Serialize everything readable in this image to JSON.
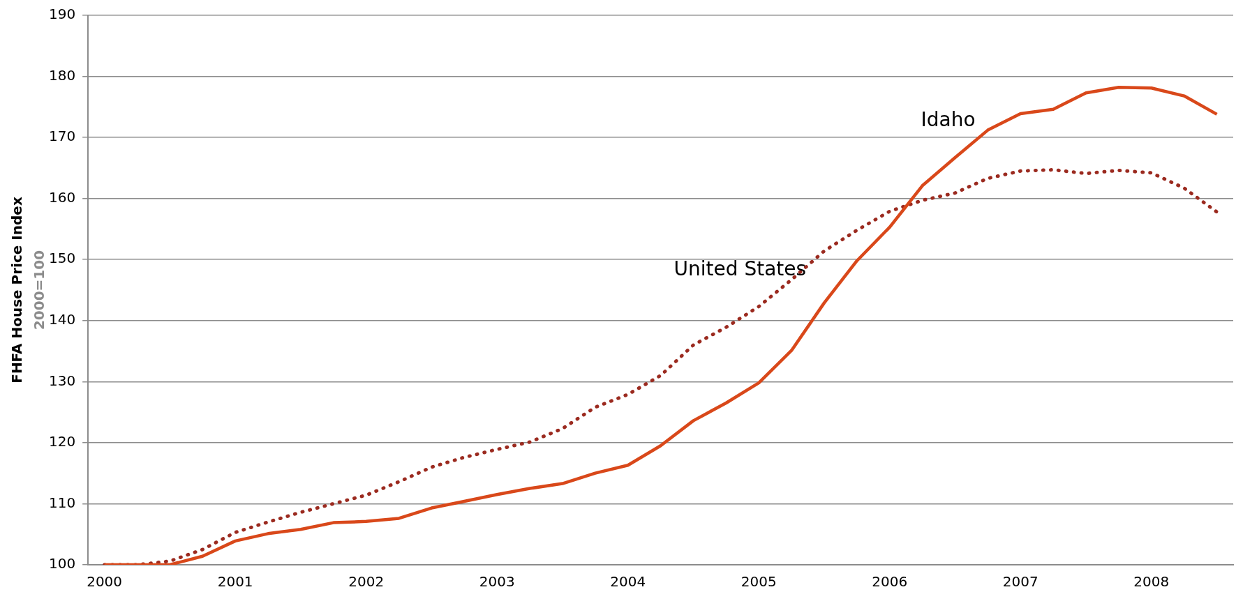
{
  "chart_data": {
    "type": "line",
    "ylabel": "FHFA House Price Index\n2000=100",
    "categories": [
      "2000",
      null,
      null,
      null,
      "2001",
      null,
      null,
      null,
      "2002",
      null,
      null,
      null,
      "2003",
      null,
      null,
      null,
      "2004",
      null,
      null,
      null,
      "2005",
      null,
      null,
      null,
      "2006",
      null,
      null,
      null,
      "2007",
      null,
      null,
      null,
      "2008",
      null,
      null
    ],
    "series": [
      {
        "name": "Idaho",
        "color": "#d9481a",
        "line_style": "solid",
        "values": [
          100,
          100,
          100,
          101.4,
          103.9,
          105.1,
          105.8,
          106.9,
          107.1,
          107.6,
          109.3,
          110.4,
          111.5,
          112.5,
          113.3,
          115,
          116.3,
          119.5,
          123.6,
          126.5,
          129.8,
          135.1,
          142.9,
          149.8,
          155.3,
          162.1,
          166.7,
          171.2,
          173.9,
          174.6,
          177.3,
          178.2,
          178.1,
          176.8,
          173.8
        ]
      },
      {
        "name": "United States",
        "color": "#9b2a1f",
        "line_style": "dotted",
        "values": [
          100,
          100,
          100.6,
          102.5,
          105.3,
          107,
          108.6,
          110,
          111.4,
          113.6,
          116,
          117.6,
          118.9,
          120.1,
          122.3,
          125.8,
          127.9,
          131,
          136,
          138.9,
          142.3,
          146.7,
          151.4,
          154.8,
          157.9,
          159.7,
          160.9,
          163.3,
          164.5,
          164.7,
          164.1,
          164.6,
          164.2,
          161.7,
          157.8
        ]
      }
    ],
    "ylim": [
      100,
      190
    ],
    "yticks": [
      100,
      110,
      120,
      130,
      140,
      150,
      160,
      170,
      180,
      190
    ],
    "grid": "y",
    "legend": false,
    "marker": "none"
  }
}
